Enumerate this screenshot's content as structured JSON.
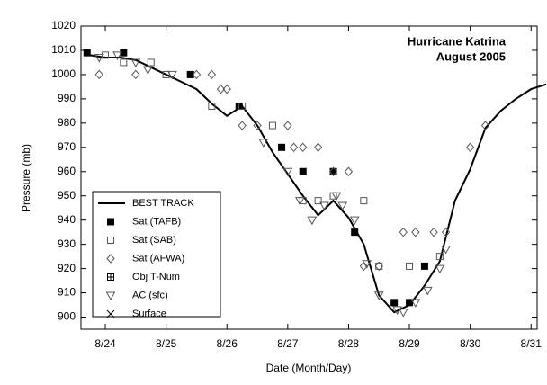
{
  "chart_data": {
    "type": "line",
    "annotations": [
      "Hurricane Katrina",
      "August 2005"
    ],
    "xlabel": "Date (Month/Day)",
    "ylabel": "Pressure (mb)",
    "xlim": [
      23.6,
      31.1
    ],
    "ylim": [
      895,
      1020
    ],
    "xticks": [
      {
        "value": 24,
        "label": "8/24"
      },
      {
        "value": 25,
        "label": "8/25"
      },
      {
        "value": 26,
        "label": "8/26"
      },
      {
        "value": 27,
        "label": "8/27"
      },
      {
        "value": 28,
        "label": "8/28"
      },
      {
        "value": 29,
        "label": "8/29"
      },
      {
        "value": 30,
        "label": "8/30"
      },
      {
        "value": 31,
        "label": "8/31"
      }
    ],
    "yticks": [
      900,
      910,
      920,
      930,
      940,
      950,
      960,
      970,
      980,
      990,
      1000,
      1010,
      1020
    ],
    "legend": "lower left",
    "series": [
      {
        "name": "BEST TRACK",
        "marker": "line",
        "color": "#000000",
        "x": [
          23.75,
          24.0,
          24.25,
          24.5,
          24.75,
          25.0,
          25.25,
          25.5,
          25.75,
          26.0,
          26.25,
          26.5,
          26.75,
          27.0,
          27.25,
          27.5,
          27.75,
          28.0,
          28.25,
          28.5,
          28.75,
          29.0,
          29.25,
          29.5,
          29.75,
          30.0,
          30.25,
          30.5,
          30.75,
          31.0,
          31.25
        ],
        "values": [
          1008,
          1007,
          1007,
          1006,
          1003,
          1000,
          997,
          994,
          988,
          983,
          987,
          979,
          968,
          959,
          950,
          942,
          948,
          941,
          930,
          909,
          902,
          905,
          913,
          923,
          948,
          961,
          978,
          985,
          990,
          994,
          996
        ]
      },
      {
        "name": "Sat (TAFB)",
        "marker": "square-filled",
        "color": "#000000",
        "x": [
          23.7,
          24.3,
          25.4,
          26.2,
          26.9,
          27.25,
          27.75,
          28.1,
          28.75,
          29.0,
          29.25
        ],
        "values": [
          1009,
          1009,
          1000,
          987,
          970,
          960,
          960,
          935,
          906,
          906,
          921
        ]
      },
      {
        "name": "Sat (SAB)",
        "marker": "square-open",
        "color": "#000000",
        "x": [
          24.0,
          24.3,
          24.75,
          25.0,
          25.75,
          26.25,
          26.75,
          27.25,
          27.5,
          27.75,
          28.25,
          28.5,
          29.0,
          29.5
        ],
        "values": [
          1008,
          1005,
          1005,
          1000,
          987,
          987,
          979,
          948,
          948,
          950,
          948,
          921,
          921,
          925
        ]
      },
      {
        "name": "Sat (AFWA)",
        "marker": "diamond",
        "color": "#000000",
        "x": [
          23.9,
          24.5,
          25.5,
          25.75,
          25.9,
          26.0,
          26.25,
          26.5,
          27.0,
          27.1,
          27.25,
          27.5,
          27.75,
          28.0,
          28.25,
          28.5,
          28.9,
          29.1,
          29.4,
          29.6,
          30.0,
          30.25
        ],
        "values": [
          1000,
          1000,
          1000,
          1000,
          994,
          994,
          979,
          979,
          979,
          970,
          970,
          970,
          960,
          960,
          921,
          921,
          935,
          935,
          935,
          935,
          970,
          979
        ]
      },
      {
        "name": "Obj T-Num",
        "marker": "square-plus",
        "color": "#000000",
        "x": [],
        "values": []
      },
      {
        "name": "AC (sfc)",
        "marker": "triangle-down",
        "color": "#000000",
        "x": [
          23.9,
          24.2,
          24.5,
          24.7,
          25.1,
          26.6,
          27.0,
          27.2,
          27.4,
          27.6,
          27.8,
          27.9,
          28.1,
          28.3,
          28.5,
          28.8,
          28.9,
          29.1,
          29.3,
          29.5,
          29.6
        ],
        "values": [
          1007,
          1008,
          1005,
          1002,
          1000,
          972,
          960,
          948,
          940,
          946,
          950,
          946,
          940,
          922,
          909,
          903,
          902,
          906,
          911,
          920,
          928
        ]
      },
      {
        "name": "Surface",
        "marker": "cross",
        "color": "#000000",
        "x": [],
        "values": []
      }
    ]
  }
}
